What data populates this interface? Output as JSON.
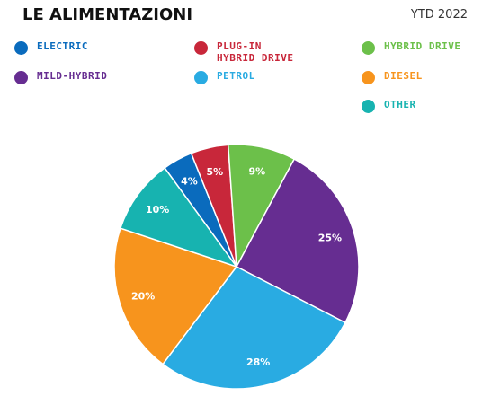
{
  "header": {
    "title": "LE ALIMENTAZIONI",
    "period": "YTD 2022"
  },
  "chart_data": {
    "type": "pie",
    "title": "LE ALIMENTAZIONI",
    "categories": [
      "Electric",
      "Plug-in Hybrid Drive",
      "Hybrid Drive",
      "Mild-Hybrid",
      "Petrol",
      "Diesel",
      "Other"
    ],
    "values": [
      4,
      5,
      9,
      25,
      28,
      20,
      10
    ],
    "slice_labels": [
      "4%",
      "5%",
      "9%",
      "25%",
      "28%",
      "20%",
      "10%"
    ],
    "colors": [
      "#0a6bbd",
      "#c8273a",
      "#6cc04a",
      "#662d91",
      "#29abe2",
      "#f7941d",
      "#17b3b0"
    ],
    "legend_placement": "top",
    "legend": [
      {
        "label": "ELECTRIC",
        "color": "#0a6bbd"
      },
      {
        "label": "PLUG-IN\nHYBRID DRIVE",
        "color": "#c8273a"
      },
      {
        "label": "HYBRID DRIVE",
        "color": "#6cc04a"
      },
      {
        "label": "MILD-HYBRID",
        "color": "#662d91"
      },
      {
        "label": "PETROL",
        "color": "#29abe2"
      },
      {
        "label": "DIESEL",
        "color": "#f7941d"
      },
      {
        "label": "OTHER",
        "color": "#17b3b0"
      }
    ]
  }
}
